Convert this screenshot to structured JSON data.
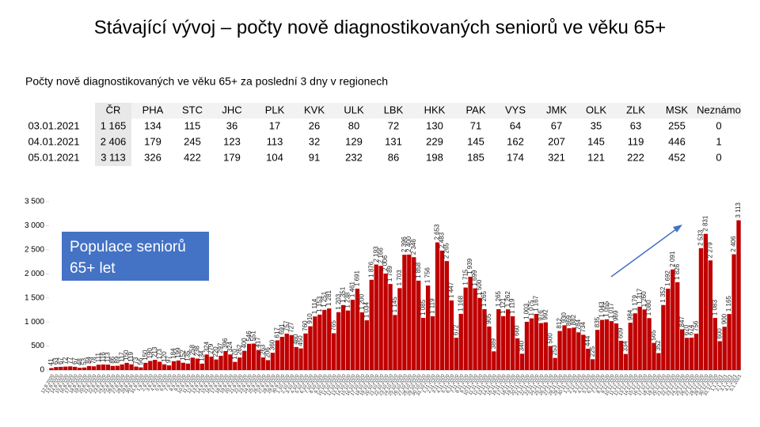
{
  "header": {
    "title": "Stávající vývoj – počty nově diagnostikovaných seniorů ve věku 65+",
    "subtitle": "Počty nově diagnostikovaných ve věku 65+ za poslední 3 dny v regionech"
  },
  "table": {
    "columns": [
      "ČR",
      "PHA",
      "STC",
      "JHC",
      "PLK",
      "KVK",
      "ULK",
      "LBK",
      "HKK",
      "PAK",
      "VYS",
      "JMK",
      "OLK",
      "ZLK",
      "MSK",
      "Neznámo"
    ],
    "rows": [
      [
        "03.01.2021",
        "1 165",
        "134",
        "115",
        "36",
        "17",
        "26",
        "80",
        "72",
        "130",
        "71",
        "64",
        "67",
        "35",
        "63",
        "255",
        "0"
      ],
      [
        "04.01.2021",
        "2 406",
        "179",
        "245",
        "123",
        "113",
        "32",
        "129",
        "131",
        "229",
        "145",
        "162",
        "207",
        "145",
        "119",
        "446",
        "1"
      ],
      [
        "05.01.2021",
        "3 113",
        "326",
        "422",
        "179",
        "104",
        "91",
        "232",
        "86",
        "198",
        "185",
        "174",
        "321",
        "121",
        "222",
        "452",
        "0"
      ]
    ]
  },
  "chart_data": {
    "type": "bar",
    "color": "#c00000",
    "annotation": "Populace seniorů 65+ let",
    "ylim": [
      0,
      3500
    ],
    "yticks": [
      0,
      500,
      {
        "value": 1000,
        "label": "1 000"
      },
      {
        "value": 1500,
        "label": "1 500"
      },
      {
        "value": 2000,
        "label": "2 000"
      },
      {
        "value": 2500,
        "label": "2 500"
      },
      {
        "value": 3000,
        "label": "3 000"
      },
      {
        "value": 3500,
        "label": "3 500"
      }
    ],
    "categories": [
      "12.8.2020",
      "13.8.2020",
      "14.8.2020",
      "15.8.2020",
      "16.8.2020",
      "17.8.2020",
      "18.8.2020",
      "19.8.2020",
      "20.8.2020",
      "21.8.2020",
      "22.8.2020",
      "23.8.2020",
      "24.8.2020",
      "25.8.2020",
      "26.8.2020",
      "27.8.2020",
      "28.8.2020",
      "29.8.2020",
      "30.8.2020",
      "31.8.2020",
      "1.9.2020",
      "2.9.2020",
      "3.9.2020",
      "4.9.2020",
      "5.9.2020",
      "6.9.2020",
      "7.9.2020",
      "8.9.2020",
      "9.9.2020",
      "10.9.2020",
      "11.9.2020",
      "12.9.2020",
      "13.9.2020",
      "14.9.2020",
      "15.9.2020",
      "16.9.2020",
      "17.9.2020",
      "18.9.2020",
      "19.9.2020",
      "20.9.2020",
      "21.9.2020",
      "22.9.2020",
      "23.9.2020",
      "24.9.2020",
      "25.9.2020",
      "26.9.2020",
      "27.9.2020",
      "28.9.2020",
      "29.9.2020",
      "30.9.2020",
      "1.10.2020",
      "2.10.2020",
      "3.10.2020",
      "4.10.2020",
      "5.10.2020",
      "6.10.2020",
      "7.10.2020",
      "8.10.2020",
      "9.10.2020",
      "10.10.2020",
      "11.10.2020",
      "12.10.2020",
      "13.10.2020",
      "14.10.2020",
      "15.10.2020",
      "16.10.2020",
      "17.10.2020",
      "18.10.2020",
      "19.10.2020",
      "20.10.2020",
      "21.10.2020",
      "22.10.2020",
      "23.10.2020",
      "24.10.2020",
      "25.10.2020",
      "26.10.2020",
      "27.10.2020",
      "28.10.2020",
      "29.10.2020",
      "30.10.2020",
      "31.10.2020",
      "1.11.2020",
      "2.11.2020",
      "3.11.2020",
      "4.11.2020",
      "5.11.2020",
      "6.11.2020",
      "7.11.2020",
      "8.11.2020",
      "9.11.2020",
      "10.11.2020",
      "11.11.2020",
      "12.11.2020",
      "13.11.2020",
      "14.11.2020",
      "15.11.2020",
      "16.11.2020",
      "17.11.2020",
      "18.11.2020",
      "19.11.2020",
      "20.11.2020",
      "21.11.2020",
      "22.11.2020",
      "23.11.2020",
      "24.11.2020",
      "25.11.2020",
      "26.11.2020",
      "27.11.2020",
      "28.11.2020",
      "29.11.2020",
      "30.11.2020",
      "1.12.2020",
      "2.12.2020",
      "3.12.2020",
      "4.12.2020",
      "5.12.2020",
      "6.12.2020",
      "7.12.2020",
      "8.12.2020",
      "9.12.2020",
      "10.12.2020",
      "11.12.2020",
      "12.12.2020",
      "13.12.2020",
      "14.12.2020",
      "15.12.2020",
      "16.12.2020",
      "17.12.2020",
      "18.12.2020",
      "19.12.2020",
      "20.12.2020",
      "21.12.2020",
      "22.12.2020",
      "23.12.2020",
      "24.12.2020",
      "25.12.2020",
      "26.12.2020",
      "27.12.2020",
      "28.12.2020",
      "29.12.2020",
      "30.12.2020",
      "31.12.2020",
      "1.1.2021",
      "2.1.2021",
      "3.1.2021",
      "4.1.2021",
      "5.1.2021"
    ],
    "values": [
      41,
      63,
      67,
      72,
      77,
      67,
      48,
      53,
      84,
      78,
      111,
      116,
      113,
      86,
      89,
      117,
      150,
      119,
      73,
      56,
      150,
      190,
      213,
      173,
      120,
      97,
      184,
      199,
      152,
      135,
      258,
      238,
      134,
      324,
      279,
      220,
      297,
      396,
      324,
      170,
      262,
      400,
      546,
      551,
      417,
      263,
      206,
      360,
      617,
      691,
      757,
      727,
      480,
      450,
      760,
      910,
      1114,
      1153,
      1251,
      1281,
      765,
      1203,
      1351,
      1238,
      1461,
      1691,
      1200,
      1034,
      1876,
      2193,
      2166,
      2006,
      1789,
      1145,
      1703,
      2396,
      2400,
      2346,
      1858,
      1085,
      1756,
      1119,
      2653,
      2483,
      2265,
      1447,
      672,
      1168,
      1715,
      1939,
      1699,
      1500,
      1265,
      905,
      389,
      1265,
      1121,
      1262,
      1119,
      660,
      340,
      1003,
      1075,
      1167,
      976,
      992,
      500,
      253,
      812,
      930,
      869,
      882,
      784,
      734,
      444,
      225,
      835,
      1043,
      1055,
      1017,
      969,
      609,
      334,
      984,
      1179,
      1317,
      1260,
      1080,
      565,
      352,
      1352,
      1692,
      2091,
      1826,
      847,
      670,
      674,
      756,
      2533,
      2831,
      2279,
      1083,
      600,
      900,
      1165,
      2406,
      3113
    ],
    "value_labels": [
      "41",
      "63",
      "67",
      "72",
      "77",
      "67",
      "48",
      "53",
      "84",
      "78",
      "111",
      "116",
      "113",
      "86",
      "89",
      "117",
      "150",
      "119",
      "73",
      "56",
      "150",
      "190",
      "213",
      "173",
      "120",
      "97",
      "184",
      "199",
      "152",
      "135",
      "258",
      "238",
      "134",
      "324",
      "279",
      "220",
      "297",
      "396",
      "324",
      "170",
      "262",
      "400",
      "546",
      "551",
      "417",
      "263",
      "206",
      "360",
      "617",
      "691",
      "757",
      "727",
      "480",
      "450",
      "760",
      "910",
      "1 114",
      "1 153",
      "1 251",
      "1 281",
      "765",
      "1 203",
      "1 351",
      "1 238",
      "1 461",
      "1 691",
      "1 200",
      "1 034",
      "1 876",
      "2 193",
      "2 166",
      "2 006",
      "1 789",
      "1 145",
      "1 703",
      "2 396",
      "2 400",
      "2 346",
      "1 858",
      "1 085",
      "1 756",
      "1 119",
      "2 653",
      "2 483",
      "2 265",
      "1 447",
      "672",
      "1 168",
      "1 715",
      "1 939",
      "1 699",
      "1 500",
      "1 265",
      "905",
      "389",
      "1 265",
      "1 121",
      "1 262",
      "1 119",
      "660",
      "340",
      "1 003",
      "1 075",
      "1 167",
      "976",
      "992",
      "500",
      "253",
      "812",
      "930",
      "869",
      "882",
      "784",
      "734",
      "444",
      "225",
      "835",
      "1 043",
      "1 055",
      "1 017",
      "969",
      "609",
      "334",
      "984",
      "1 179",
      "1 317",
      "1 260",
      "1 080",
      "565",
      "352",
      "1 352",
      "1 692",
      "2 091",
      "1 826",
      "847",
      "670",
      "674",
      "756",
      "2 533",
      "2 831",
      "2 279",
      "1 083",
      "600",
      "900",
      "1 165",
      "2 406",
      "3 113"
    ]
  }
}
